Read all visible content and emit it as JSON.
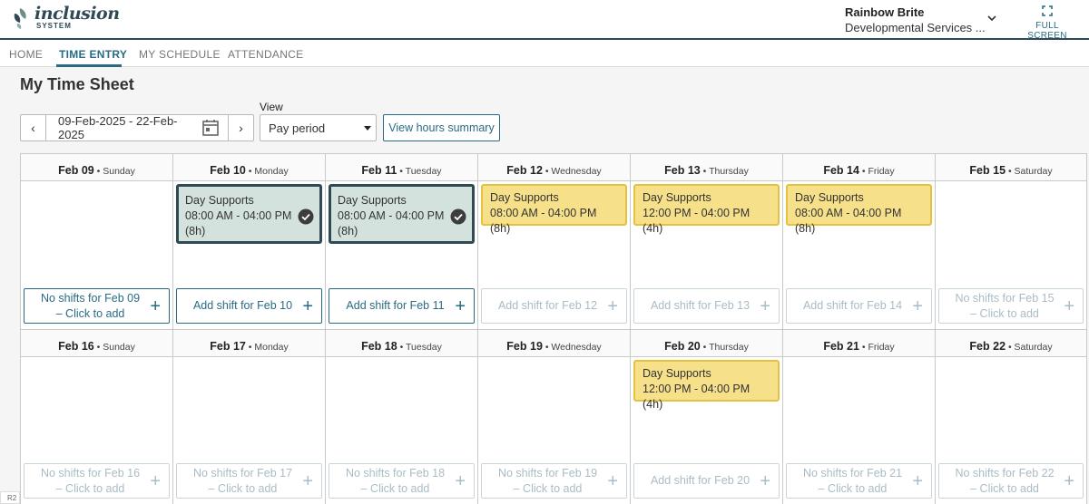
{
  "brand": {
    "name": "inclusion",
    "sub": "SYSTEM"
  },
  "user": {
    "name": "Rainbow Brite",
    "org": "Developmental Services ..."
  },
  "fullscreen_label": "FULL SCREEN",
  "nav": {
    "items": [
      "HOME",
      "TIME ENTRY",
      "MY SCHEDULE",
      "ATTENDANCE"
    ],
    "active": "TIME ENTRY"
  },
  "page_title": "My Time Sheet",
  "date_range": "09-Feb-2025 - 22-Feb-2025",
  "view": {
    "label": "View",
    "selected": "Pay period"
  },
  "summary_button": "View hours summary",
  "weeks": [
    [
      {
        "date": "Feb 09",
        "weekday": "Sunday",
        "shifts": [],
        "add_label": "No shifts for Feb 09 – Click to add",
        "add_enabled": true
      },
      {
        "date": "Feb 10",
        "weekday": "Monday",
        "shifts": [
          {
            "title": "Day Supports",
            "time": "08:00 AM - 04:00 PM",
            "hours": "(8h)",
            "status": "approved"
          }
        ],
        "add_label": "Add shift for Feb 10",
        "add_enabled": true
      },
      {
        "date": "Feb 11",
        "weekday": "Tuesday",
        "shifts": [
          {
            "title": "Day Supports",
            "time": "08:00 AM - 04:00 PM",
            "hours": "(8h)",
            "status": "approved"
          }
        ],
        "add_label": "Add shift for Feb 11",
        "add_enabled": true
      },
      {
        "date": "Feb 12",
        "weekday": "Wednesday",
        "shifts": [
          {
            "title": "Day Supports",
            "time": "08:00 AM - 04:00 PM",
            "hours": "(8h)",
            "status": "pending"
          }
        ],
        "add_label": "Add shift for Feb 12",
        "add_enabled": false
      },
      {
        "date": "Feb 13",
        "weekday": "Thursday",
        "shifts": [
          {
            "title": "Day Supports",
            "time": "12:00 PM - 04:00 PM",
            "hours": "(4h)",
            "status": "pending"
          }
        ],
        "add_label": "Add shift for Feb 13",
        "add_enabled": false
      },
      {
        "date": "Feb 14",
        "weekday": "Friday",
        "shifts": [
          {
            "title": "Day Supports",
            "time": "08:00 AM - 04:00 PM",
            "hours": "(8h)",
            "status": "pending"
          }
        ],
        "add_label": "Add shift for Feb 14",
        "add_enabled": false
      },
      {
        "date": "Feb 15",
        "weekday": "Saturday",
        "shifts": [],
        "add_label": "No shifts for Feb 15 – Click to add",
        "add_enabled": false
      }
    ],
    [
      {
        "date": "Feb 16",
        "weekday": "Sunday",
        "shifts": [],
        "add_label": "No shifts for Feb 16 – Click to add",
        "add_enabled": false
      },
      {
        "date": "Feb 17",
        "weekday": "Monday",
        "shifts": [],
        "add_label": "No shifts for Feb 17 – Click to add",
        "add_enabled": false
      },
      {
        "date": "Feb 18",
        "weekday": "Tuesday",
        "shifts": [],
        "add_label": "No shifts for Feb 18 – Click to add",
        "add_enabled": false
      },
      {
        "date": "Feb 19",
        "weekday": "Wednesday",
        "shifts": [],
        "add_label": "No shifts for Feb 19 – Click to add",
        "add_enabled": false
      },
      {
        "date": "Feb 20",
        "weekday": "Thursday",
        "shifts": [
          {
            "title": "Day Supports",
            "time": "12:00 PM - 04:00 PM",
            "hours": "(4h)",
            "status": "pending"
          }
        ],
        "add_label": "Add shift for Feb 20",
        "add_enabled": false
      },
      {
        "date": "Feb 21",
        "weekday": "Friday",
        "shifts": [],
        "add_label": "No shifts for Feb 21 – Click to add",
        "add_enabled": false
      },
      {
        "date": "Feb 22",
        "weekday": "Saturday",
        "shifts": [],
        "add_label": "No shifts for Feb 22 – Click to add",
        "add_enabled": false
      }
    ]
  ],
  "footer_tag": "R2",
  "colors": {
    "brand": "#2f4a55",
    "accent": "#2a6b84",
    "approved": "#d4e2de",
    "pending": "#f6e08a"
  }
}
